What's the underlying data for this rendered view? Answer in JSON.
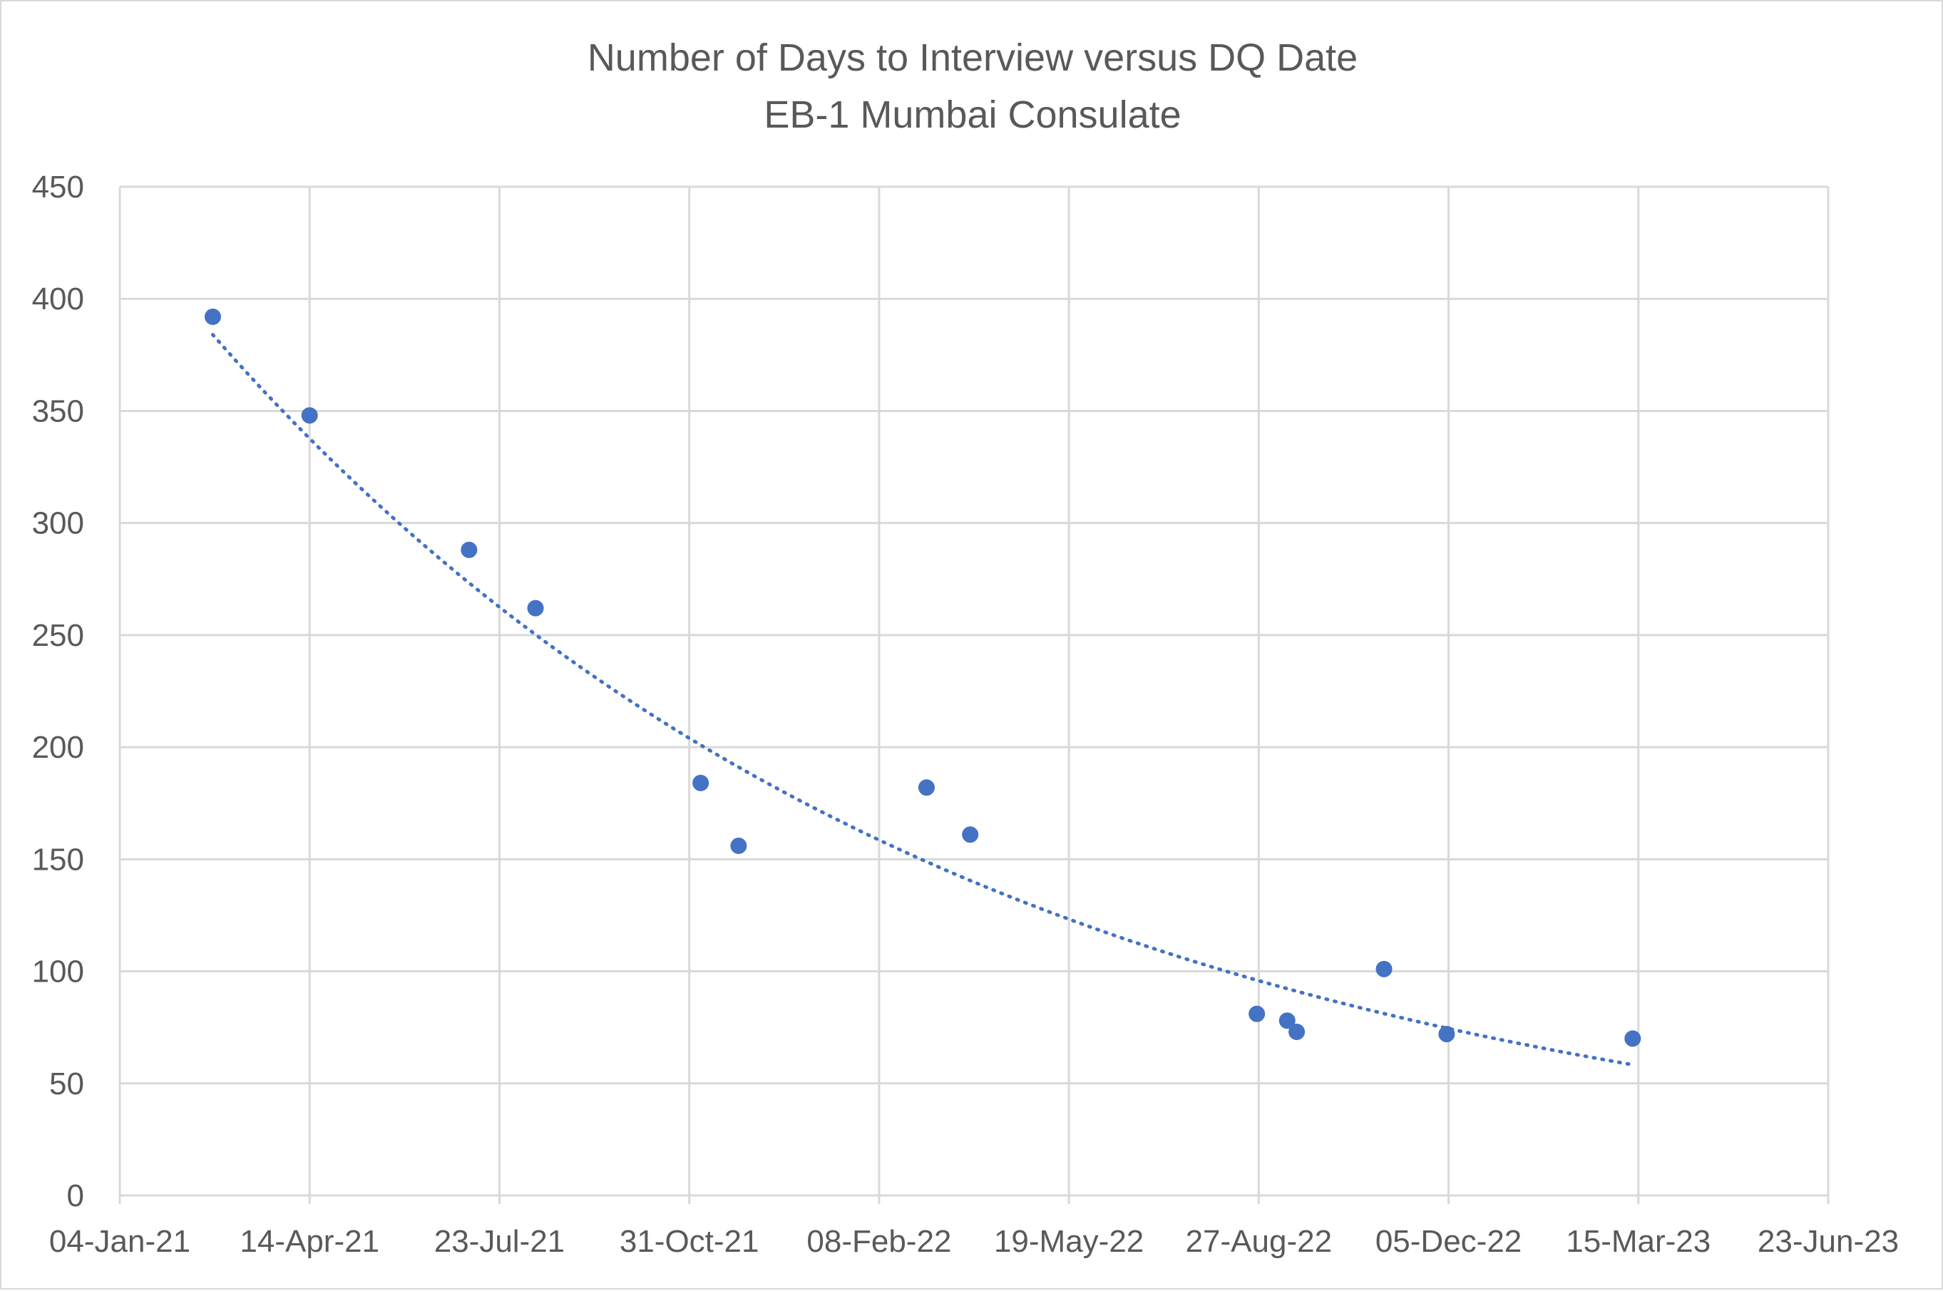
{
  "chart_data": {
    "type": "scatter",
    "title": "Number of Days to Interview versus DQ Date",
    "subtitle": "EB-1 Mumbai Consulate",
    "xlabel": "",
    "ylabel": "",
    "x_axis": {
      "kind": "date",
      "range": [
        "04-Jan-21",
        "23-Jun-23"
      ],
      "tick_labels": [
        "04-Jan-21",
        "14-Apr-21",
        "23-Jul-21",
        "31-Oct-21",
        "08-Feb-22",
        "19-May-22",
        "27-Aug-22",
        "05-Dec-22",
        "15-Mar-23",
        "23-Jun-23"
      ]
    },
    "y_axis": {
      "range": [
        0,
        450
      ],
      "tick_labels": [
        "0",
        "50",
        "100",
        "150",
        "200",
        "250",
        "300",
        "350",
        "400",
        "450"
      ]
    },
    "grid": true,
    "legend": "none",
    "trendline": {
      "type": "exponential",
      "style": "dotted",
      "x_range": [
        "2021-02-22",
        "2023-03-12"
      ]
    },
    "series": [
      {
        "points": [
          {
            "x": "2021-02-22",
            "y": 392
          },
          {
            "x": "2021-04-14",
            "y": 348
          },
          {
            "x": "2021-07-07",
            "y": 288
          },
          {
            "x": "2021-08-11",
            "y": 262
          },
          {
            "x": "2021-11-06",
            "y": 184
          },
          {
            "x": "2021-11-26",
            "y": 156
          },
          {
            "x": "2022-03-05",
            "y": 182
          },
          {
            "x": "2022-03-28",
            "y": 161
          },
          {
            "x": "2022-08-26",
            "y": 81
          },
          {
            "x": "2022-09-11",
            "y": 78
          },
          {
            "x": "2022-09-16",
            "y": 73
          },
          {
            "x": "2022-11-01",
            "y": 101
          },
          {
            "x": "2022-12-04",
            "y": 72
          },
          {
            "x": "2023-03-12",
            "y": 70
          }
        ]
      }
    ],
    "colors": {
      "series": "#4472c4",
      "text": "#595959",
      "grid": "#d9d9d9"
    }
  }
}
